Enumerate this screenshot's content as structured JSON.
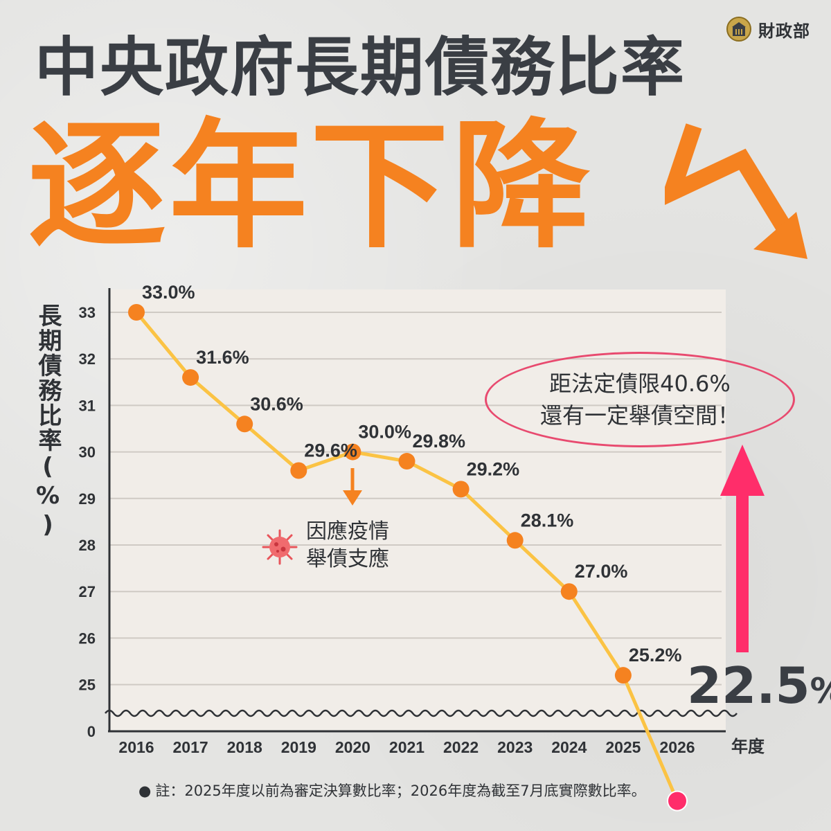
{
  "logo": {
    "name": "財政部"
  },
  "title": {
    "line1": "中央政府長期債務比率",
    "line2": "逐年下降"
  },
  "colors": {
    "accent": "#f58220",
    "line": "#fbc344",
    "highlight": "#ff2d6a",
    "text": "#3a3e44"
  },
  "annotations": {
    "covid_line1": "因應疫情",
    "covid_line2": "舉債支應",
    "callout_line1": "距法定債限40.6%",
    "callout_line2": "還有一定舉債空間！",
    "latest_value_number": "22.5",
    "latest_value_unit": "%"
  },
  "footnote": {
    "bullet": "●",
    "text": "註：2025年度以前為審定決算數比率；2026年度為截至7月底實際數比率。"
  },
  "chart_data": {
    "type": "line",
    "ylabel": "長期債務比率(%)",
    "xlabel": "年度",
    "categories": [
      "2016",
      "2017",
      "2018",
      "2019",
      "2020",
      "2021",
      "2022",
      "2023",
      "2024",
      "2025",
      "2026"
    ],
    "values": [
      33.0,
      31.6,
      30.6,
      29.6,
      30.0,
      29.8,
      29.2,
      28.1,
      27.0,
      25.2,
      22.5
    ],
    "data_labels": [
      "33.0%",
      "31.6%",
      "30.6%",
      "29.6%",
      "30.0%",
      "29.8%",
      "29.2%",
      "28.1%",
      "27.0%",
      "25.2%",
      ""
    ],
    "yticks": [
      "33",
      "32",
      "31",
      "30",
      "29",
      "28",
      "27",
      "26",
      "25",
      "0"
    ],
    "ylim": [
      24,
      33.7
    ],
    "y_axis_break": true,
    "grid": true,
    "legend": "none"
  }
}
